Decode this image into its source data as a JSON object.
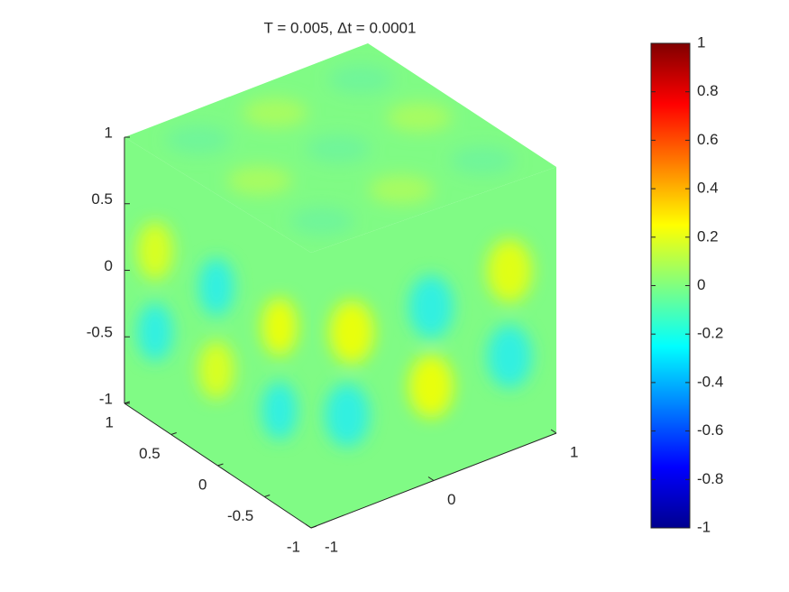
{
  "chart_data": {
    "type": "surface3d",
    "title": "T = 0.005,  Δt = 0.0001",
    "xlim": [
      -1,
      1
    ],
    "xticks": [
      -1,
      0,
      1
    ],
    "ylim": [
      -1,
      1
    ],
    "yticks": [
      -1,
      -0.5,
      0,
      0.5,
      1
    ],
    "zlim": [
      -1,
      1
    ],
    "zticks": [
      -1,
      -0.5,
      0,
      0.5,
      1
    ],
    "colorbar": {
      "colormap": "jet",
      "lim": [
        -1,
        1
      ],
      "ticks": [
        -1,
        -0.8,
        -0.6,
        -0.4,
        -0.2,
        0,
        0.2,
        0.4,
        0.6,
        0.8,
        1
      ]
    }
  }
}
